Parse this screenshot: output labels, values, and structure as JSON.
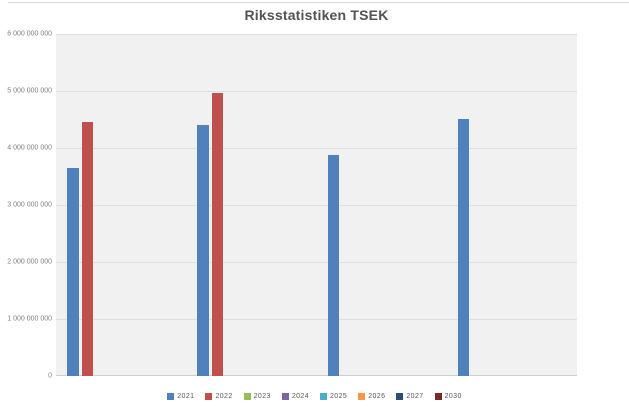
{
  "chart_data": {
    "type": "bar",
    "title": "Riksstatistiken TSEK",
    "categories": [
      "",
      "",
      "",
      ""
    ],
    "series": [
      {
        "name": "2021",
        "color": "#4F81BD",
        "values": [
          3650000000,
          4400000000,
          3870000000,
          4500000000
        ]
      },
      {
        "name": "2022",
        "color": "#C0504D",
        "values": [
          4450000000,
          4970000000,
          null,
          null
        ]
      },
      {
        "name": "2023",
        "color": "#9BBB59",
        "values": [
          null,
          null,
          null,
          null
        ]
      },
      {
        "name": "2024",
        "color": "#8064A2",
        "values": [
          null,
          null,
          null,
          null
        ]
      },
      {
        "name": "2025",
        "color": "#4BACC6",
        "values": [
          null,
          null,
          null,
          null
        ]
      },
      {
        "name": "2026",
        "color": "#F79646",
        "values": [
          null,
          null,
          null,
          null
        ]
      },
      {
        "name": "2027",
        "color": "#2C4D75",
        "values": [
          null,
          null,
          null,
          null
        ]
      },
      {
        "name": "2030",
        "color": "#772C2A",
        "values": [
          null,
          null,
          null,
          null
        ]
      }
    ],
    "xlabel": "",
    "ylabel": "",
    "ylim": [
      0,
      6000000000
    ],
    "ytick_step": 1000000000,
    "ytick_labels": [
      "0",
      "1 000 000 000",
      "2 000 000 000",
      "3 000 000 000",
      "4 000 000 000",
      "5 000 000 000",
      "6 000 000 000"
    ],
    "grid": true,
    "legend_position": "bottom",
    "plot_background": "#f1f1f2",
    "gridline_color": "#dedede",
    "title_color": "#535353",
    "tick_label_color": "#7f7f7f",
    "legend_label_color": "#595959"
  }
}
